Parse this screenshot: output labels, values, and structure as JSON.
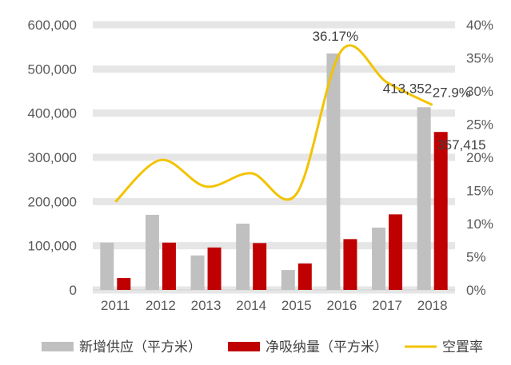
{
  "chart_data": {
    "type": "bar",
    "categories": [
      "2011",
      "2012",
      "2013",
      "2014",
      "2015",
      "2016",
      "2017",
      "2018"
    ],
    "series": [
      {
        "name": "新增供应（平方米）",
        "kind": "bar",
        "axis": "left",
        "color": "#c0c0c0",
        "values": [
          107000,
          170000,
          78000,
          150000,
          45000,
          535000,
          141000,
          413352
        ]
      },
      {
        "name": "净吸纳量（平方米）",
        "kind": "bar",
        "axis": "left",
        "color": "#c00000",
        "values": [
          27000,
          107000,
          96000,
          106000,
          60000,
          115000,
          171000,
          357415
        ]
      },
      {
        "name": "空置率",
        "kind": "line",
        "axis": "right",
        "color": "#f2c300",
        "values": [
          13.3,
          19.6,
          15.6,
          17.6,
          14.5,
          36.17,
          31.3,
          27.9
        ]
      }
    ],
    "left_axis": {
      "min": 0,
      "max": 600000,
      "ticks": [
        "0",
        "100,000",
        "200,000",
        "300,000",
        "400,000",
        "500,000",
        "600,000"
      ]
    },
    "right_axis": {
      "min": 0,
      "max": 40,
      "ticks": [
        "0%",
        "5%",
        "10%",
        "15%",
        "20%",
        "25%",
        "30%",
        "35%",
        "40%"
      ]
    },
    "annotations": [
      {
        "series": 2,
        "index": 5,
        "text": "36.17%"
      },
      {
        "series": 2,
        "index": 7,
        "text": "27.9%"
      },
      {
        "series": 0,
        "index": 7,
        "text": "413,352"
      },
      {
        "series": 1,
        "index": 7,
        "text": "357,415"
      }
    ],
    "legend_position": "bottom",
    "grid": true
  }
}
